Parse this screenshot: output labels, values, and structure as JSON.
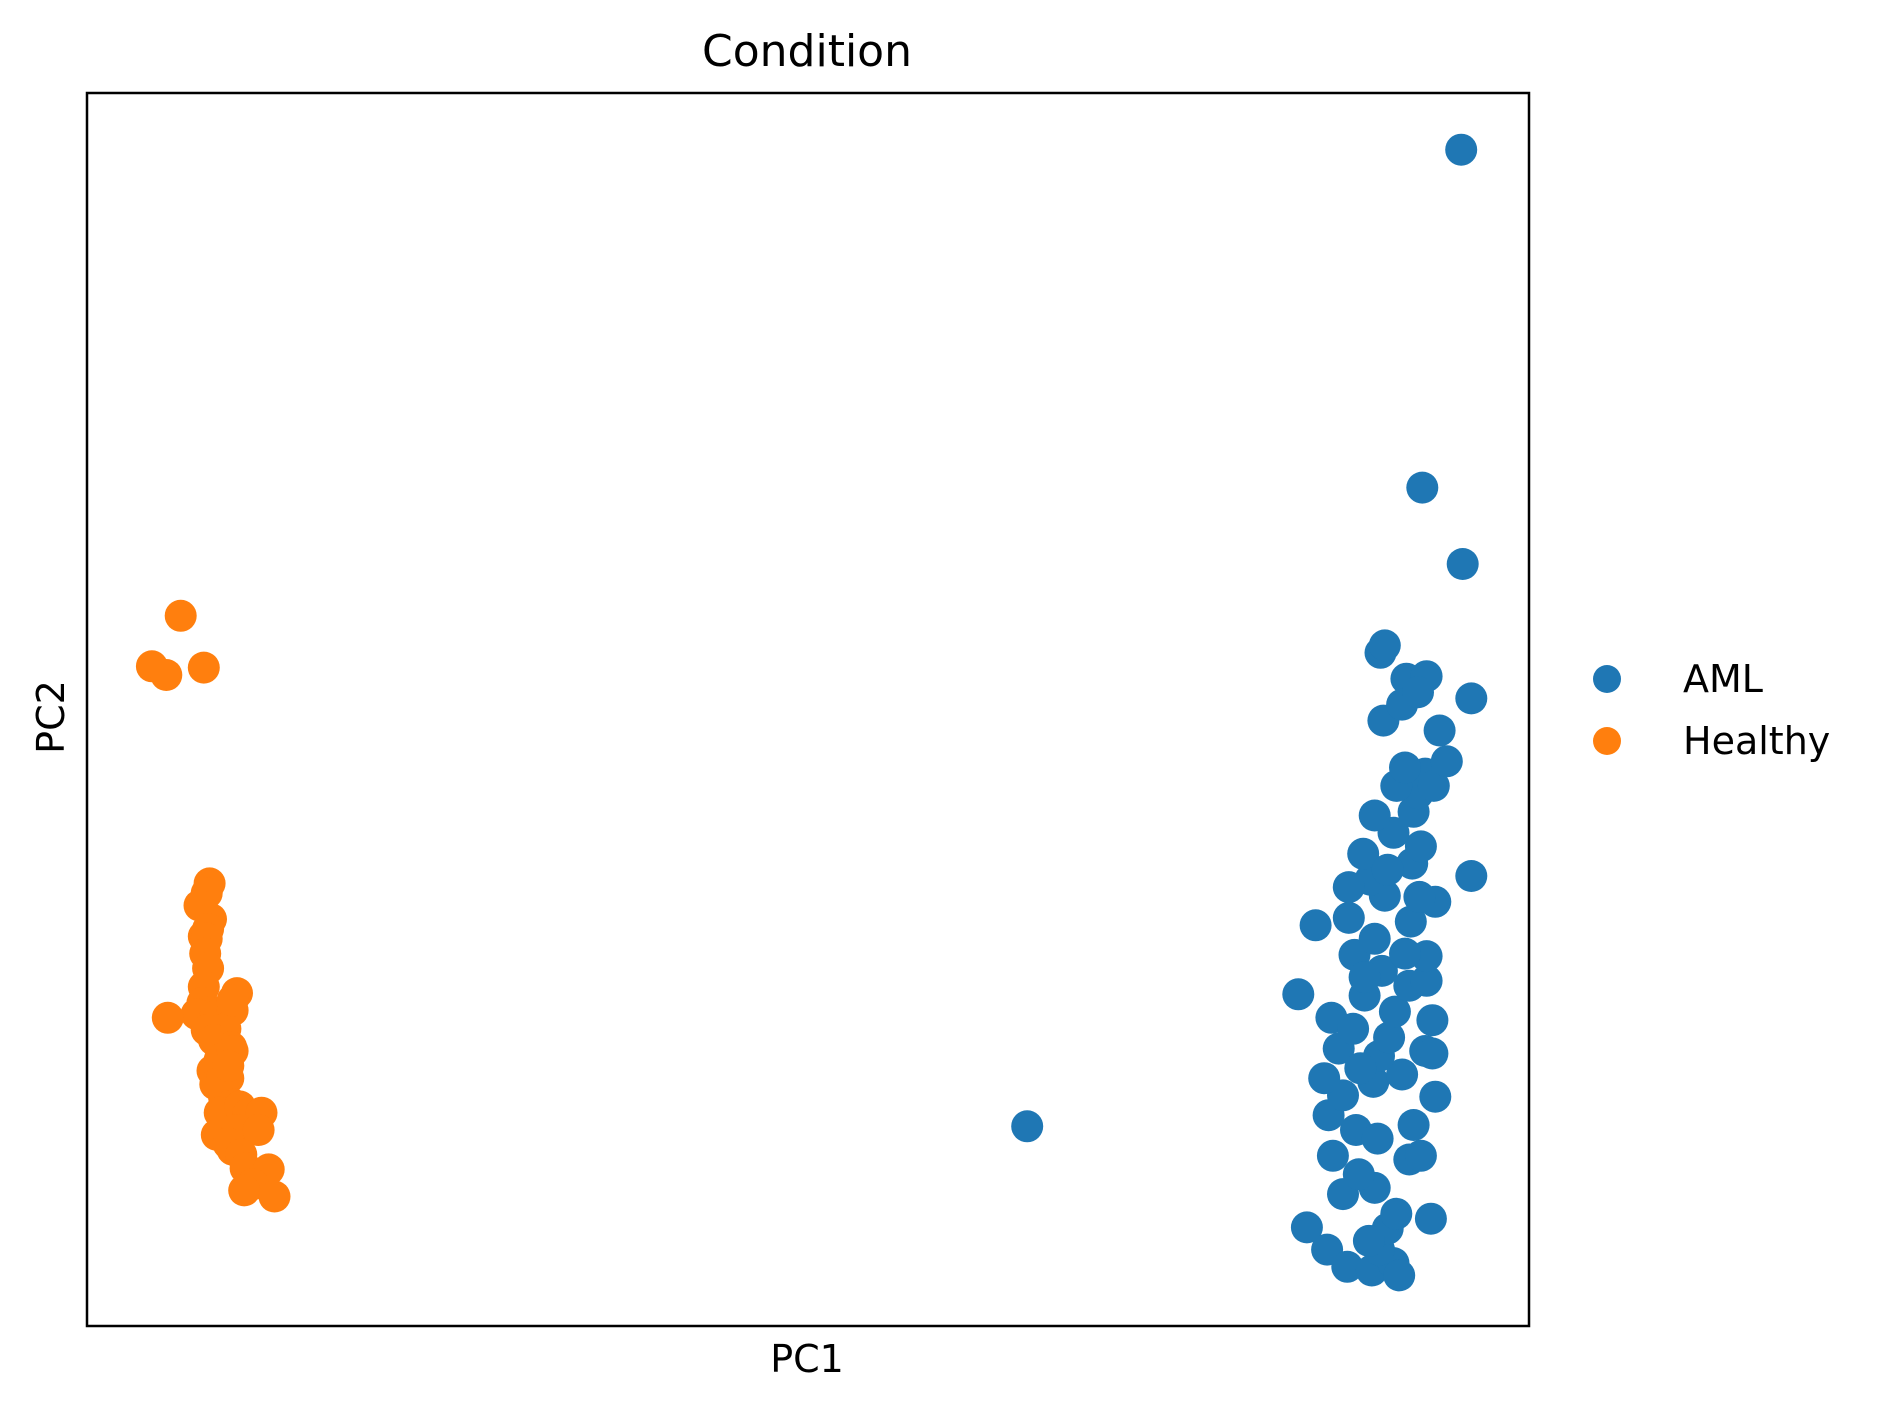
{
  "chart_data": {
    "type": "scatter",
    "title": "Condition",
    "xlabel": "PC1",
    "ylabel": "PC2",
    "xlim": [
      0,
      100
    ],
    "ylim": [
      0,
      100
    ],
    "x_ticks_shown": false,
    "y_ticks_shown": false,
    "grid": false,
    "legend_position": "right-outside",
    "series": [
      {
        "name": "AML",
        "color": "#1f77b4",
        "points": [
          [
            95.3,
            95.4
          ],
          [
            92.6,
            68.0
          ],
          [
            95.4,
            61.8
          ],
          [
            91.5,
            52.5
          ],
          [
            96.0,
            36.5
          ],
          [
            85.2,
            32.5
          ],
          [
            84.0,
            26.9
          ],
          [
            86.3,
            25.0
          ],
          [
            65.2,
            16.2
          ],
          [
            84.6,
            8.0
          ],
          [
            86.0,
            6.2
          ],
          [
            87.4,
            4.8
          ],
          [
            89.1,
            4.5
          ],
          [
            90.6,
            5.1
          ],
          [
            91.0,
            4.1
          ],
          [
            89.6,
            6.2
          ],
          [
            90.2,
            7.9
          ],
          [
            93.2,
            8.7
          ],
          [
            87.1,
            10.7
          ],
          [
            89.3,
            11.2
          ],
          [
            91.7,
            13.5
          ],
          [
            86.4,
            13.8
          ],
          [
            88.0,
            15.9
          ],
          [
            92.0,
            16.3
          ],
          [
            86.1,
            17.1
          ],
          [
            87.1,
            18.7
          ],
          [
            93.5,
            18.6
          ],
          [
            89.2,
            19.8
          ],
          [
            91.2,
            20.4
          ],
          [
            89.6,
            21.9
          ],
          [
            85.8,
            20.1
          ],
          [
            86.8,
            22.5
          ],
          [
            90.3,
            23.4
          ],
          [
            92.8,
            22.3
          ],
          [
            87.8,
            24.1
          ],
          [
            90.7,
            25.5
          ],
          [
            93.3,
            24.8
          ],
          [
            88.6,
            26.8
          ],
          [
            91.7,
            27.6
          ],
          [
            89.8,
            28.8
          ],
          [
            92.9,
            28.0
          ],
          [
            87.9,
            30.1
          ],
          [
            92.9,
            30.0
          ],
          [
            89.3,
            31.4
          ],
          [
            91.8,
            32.8
          ],
          [
            87.5,
            33.1
          ],
          [
            90.0,
            34.9
          ],
          [
            93.5,
            34.4
          ],
          [
            89.0,
            36.2
          ],
          [
            91.9,
            37.5
          ],
          [
            88.5,
            38.3
          ],
          [
            92.5,
            38.9
          ],
          [
            90.6,
            40.0
          ],
          [
            92.0,
            41.7
          ],
          [
            89.3,
            41.4
          ],
          [
            92.3,
            43.2
          ],
          [
            90.8,
            43.8
          ],
          [
            92.8,
            44.8
          ],
          [
            92.4,
            34.8
          ],
          [
            93.4,
            43.8
          ],
          [
            94.3,
            45.8
          ],
          [
            91.4,
            45.3
          ],
          [
            93.8,
            48.3
          ],
          [
            89.9,
            49.1
          ],
          [
            91.2,
            50.4
          ],
          [
            92.9,
            52.7
          ],
          [
            96.0,
            50.9
          ],
          [
            89.7,
            54.6
          ],
          [
            90.0,
            55.2
          ],
          [
            92.3,
            51.4
          ],
          [
            88.6,
            28.3
          ],
          [
            93.3,
            22.1
          ],
          [
            88.2,
            12.3
          ],
          [
            90.8,
            9.1
          ],
          [
            88.9,
            6.9
          ],
          [
            87.5,
            35.6
          ],
          [
            90.2,
            37.0
          ],
          [
            91.4,
            30.2
          ],
          [
            88.3,
            20.9
          ],
          [
            92.5,
            13.8
          ],
          [
            89.5,
            15.2
          ]
        ]
      },
      {
        "name": "Healthy",
        "color": "#ff7f0e",
        "points": [
          [
            6.5,
            57.6
          ],
          [
            4.5,
            53.5
          ],
          [
            8.1,
            53.4
          ],
          [
            5.5,
            52.8
          ],
          [
            8.5,
            35.9
          ],
          [
            8.3,
            35.1
          ],
          [
            7.8,
            34.1
          ],
          [
            8.6,
            33.0
          ],
          [
            8.4,
            32.2
          ],
          [
            8.1,
            31.6
          ],
          [
            8.3,
            31.4
          ],
          [
            8.2,
            30.2
          ],
          [
            8.4,
            29.0
          ],
          [
            8.1,
            27.5
          ],
          [
            8.0,
            26.2
          ],
          [
            8.5,
            25.4
          ],
          [
            7.6,
            25.3
          ],
          [
            8.9,
            25.1
          ],
          [
            10.4,
            27.0
          ],
          [
            10.1,
            25.6
          ],
          [
            5.6,
            25.0
          ],
          [
            8.3,
            24.0
          ],
          [
            9.6,
            24.1
          ],
          [
            8.8,
            23.2
          ],
          [
            10.0,
            22.6
          ],
          [
            9.2,
            21.6
          ],
          [
            8.7,
            20.7
          ],
          [
            9.8,
            20.1
          ],
          [
            8.9,
            19.6
          ],
          [
            9.5,
            18.6
          ],
          [
            10.1,
            18.0
          ],
          [
            9.2,
            17.3
          ],
          [
            10.6,
            17.8
          ],
          [
            11.2,
            17.2
          ],
          [
            12.1,
            17.3
          ],
          [
            9.0,
            15.5
          ],
          [
            10.4,
            15.9
          ],
          [
            11.9,
            15.9
          ],
          [
            10.1,
            14.3
          ],
          [
            9.8,
            14.8
          ],
          [
            10.7,
            13.9
          ],
          [
            11.0,
            12.8
          ],
          [
            12.6,
            12.7
          ],
          [
            11.5,
            11.5
          ],
          [
            10.9,
            11.0
          ],
          [
            13.0,
            10.5
          ],
          [
            10.1,
            22.3
          ],
          [
            9.4,
            20.3
          ],
          [
            9.8,
            21.1
          ],
          [
            10.1,
            26.4
          ]
        ]
      }
    ]
  }
}
